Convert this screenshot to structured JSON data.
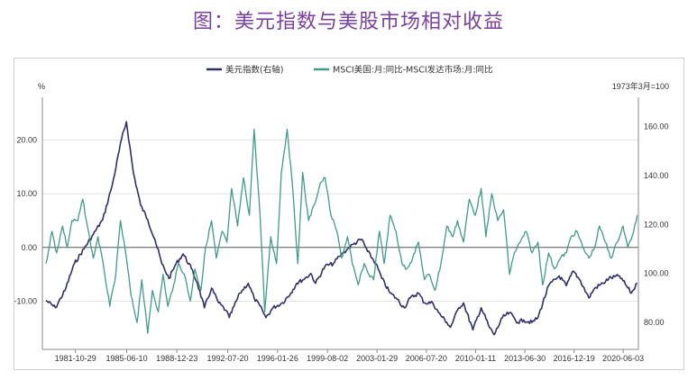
{
  "title": "图：美元指数与美股市场相对收益",
  "chart_data": {
    "type": "line",
    "y_left_unit": "%",
    "y_right_unit": "1973年3月=100",
    "y_left_lim": [
      -19,
      28
    ],
    "y_right_lim": [
      69,
      172
    ],
    "y_left_ticks": [
      "20.00",
      "10.00",
      "0.00",
      "-10.00"
    ],
    "y_left_tick_values": [
      20,
      10,
      0,
      -10
    ],
    "y_right_ticks": [
      "160.00",
      "140.00",
      "120.00",
      "100.00",
      "80.00"
    ],
    "y_right_tick_values": [
      160,
      140,
      120,
      100,
      80
    ],
    "x_range": [
      "1979-06-30",
      "2021-06-30"
    ],
    "x_ticks": [
      "1981-10-29",
      "1985-06-10",
      "1988-12-23",
      "1992-07-20",
      "1996-01-26",
      "1999-08-02",
      "2003-01-29",
      "2006-07-20",
      "2010-01-11",
      "2013-06-30",
      "2016-12-19",
      "2020-06-03"
    ],
    "legend_position": "top",
    "series": [
      {
        "name": "美元指数(右轴)",
        "axis": "right",
        "color": "#2e2f6b",
        "x": [
          "1979-10",
          "1980-06",
          "1981-02",
          "1981-10",
          "1982-06",
          "1983-02",
          "1983-10",
          "1984-06",
          "1985-02",
          "1985-06",
          "1985-12",
          "1986-06",
          "1986-12",
          "1987-06",
          "1987-12",
          "1988-06",
          "1988-12",
          "1989-06",
          "1990-01",
          "1990-06",
          "1990-12",
          "1991-06",
          "1991-12",
          "1992-06",
          "1992-09",
          "1993-06",
          "1994-01",
          "1994-06",
          "1995-01",
          "1995-04",
          "1995-10",
          "1996-06",
          "1997-01",
          "1997-06",
          "1998-01",
          "1998-06",
          "1998-10",
          "1999-06",
          "2000-01",
          "2000-06",
          "2001-01",
          "2001-06",
          "2002-01",
          "2002-06",
          "2003-01",
          "2003-06",
          "2004-01",
          "2004-06",
          "2005-01",
          "2005-06",
          "2006-01",
          "2006-06",
          "2007-01",
          "2007-06",
          "2008-01",
          "2008-04",
          "2008-11",
          "2009-03",
          "2009-11",
          "2010-06",
          "2011-01",
          "2011-05",
          "2011-12",
          "2012-06",
          "2013-01",
          "2013-06",
          "2014-01",
          "2014-06",
          "2015-03",
          "2015-12",
          "2016-06",
          "2016-12",
          "2017-06",
          "2018-01",
          "2018-06",
          "2019-01",
          "2019-06",
          "2020-03",
          "2020-06",
          "2021-01",
          "2021-06"
        ],
        "values": [
          89,
          86,
          93,
          104,
          110,
          116,
          122,
          136,
          155,
          162,
          141,
          128,
          122,
          114,
          104,
          98,
          104,
          108,
          102,
          96,
          86,
          94,
          88,
          85,
          82,
          92,
          96,
          90,
          85,
          82,
          86,
          88,
          92,
          96,
          98,
          100,
          96,
          103,
          104,
          107,
          110,
          112,
          114,
          109,
          104,
          98,
          92,
          90,
          86,
          90,
          92,
          88,
          88,
          84,
          80,
          78,
          86,
          88,
          77,
          86,
          78,
          75,
          82,
          84,
          80,
          81,
          80,
          82,
          95,
          99,
          95,
          101,
          97,
          90,
          94,
          96,
          98,
          99,
          97,
          92,
          96
        ]
      },
      {
        "name": "MSCI美国:月:同比-MSCI发达市场:月:同比",
        "axis": "left",
        "color": "#3e9c88",
        "x": [
          "1979-10",
          "1980-03",
          "1980-07",
          "1980-12",
          "1981-04",
          "1981-08",
          "1982-01",
          "1982-05",
          "1982-09",
          "1983-02",
          "1983-06",
          "1983-11",
          "1984-04",
          "1984-09",
          "1985-01",
          "1985-06",
          "1985-10",
          "1986-03",
          "1986-07",
          "1986-12",
          "1987-04",
          "1987-09",
          "1988-01",
          "1988-05",
          "1988-10",
          "1989-02",
          "1989-07",
          "1989-12",
          "1990-04",
          "1990-09",
          "1991-01",
          "1991-06",
          "1991-10",
          "1992-03",
          "1992-07",
          "1992-11",
          "1993-04",
          "1993-09",
          "1994-02",
          "1994-06",
          "1994-11",
          "1995-03",
          "1995-08",
          "1996-01",
          "1996-05",
          "1996-10",
          "1997-03",
          "1997-07",
          "1997-11",
          "1998-04",
          "1998-09",
          "1999-02",
          "1999-06",
          "1999-11",
          "2000-04",
          "2000-08",
          "2001-01",
          "2001-05",
          "2001-10",
          "2002-03",
          "2002-07",
          "2002-11",
          "2003-04",
          "2003-08",
          "2004-01",
          "2004-06",
          "2004-11",
          "2005-03",
          "2005-08",
          "2006-01",
          "2006-06",
          "2006-10",
          "2007-03",
          "2007-08",
          "2008-01",
          "2008-06",
          "2008-10",
          "2009-03",
          "2009-08",
          "2010-01",
          "2010-06",
          "2010-10",
          "2011-03",
          "2011-08",
          "2012-01",
          "2012-06",
          "2012-10",
          "2013-03",
          "2013-08",
          "2014-01",
          "2014-06",
          "2014-10",
          "2015-03",
          "2015-08",
          "2016-01",
          "2016-06",
          "2016-10",
          "2017-03",
          "2017-08",
          "2018-01",
          "2018-06",
          "2018-10",
          "2019-03",
          "2019-08",
          "2020-01",
          "2020-06",
          "2020-10",
          "2021-03",
          "2021-06"
        ],
        "values": [
          -3,
          3,
          -1,
          4,
          0,
          5,
          5,
          9,
          4,
          -2,
          2,
          -4,
          -11,
          -5,
          5,
          -2,
          -9,
          -14,
          -6,
          -16,
          -8,
          -12,
          -5,
          -11,
          -7,
          -3,
          -5,
          -10,
          -4,
          -8,
          0,
          5,
          -2,
          3,
          1,
          11,
          4,
          13,
          6,
          22,
          6,
          -12,
          2,
          -3,
          14,
          22,
          10,
          -3,
          14,
          5,
          8,
          12,
          13,
          6,
          3,
          -2,
          2,
          -3,
          -7,
          -3,
          -5,
          -6,
          3,
          -3,
          6,
          3,
          -3,
          -4,
          -2,
          1,
          -6,
          -5,
          -8,
          -3,
          4,
          2,
          5,
          1,
          9,
          6,
          11,
          2,
          10,
          5,
          7,
          -5,
          -1,
          1,
          3,
          -1,
          1,
          -7,
          -1,
          -4,
          -2,
          -1,
          2,
          3,
          0,
          -2,
          0,
          4,
          1,
          -2,
          1,
          4,
          0,
          3,
          6
        ]
      }
    ]
  }
}
